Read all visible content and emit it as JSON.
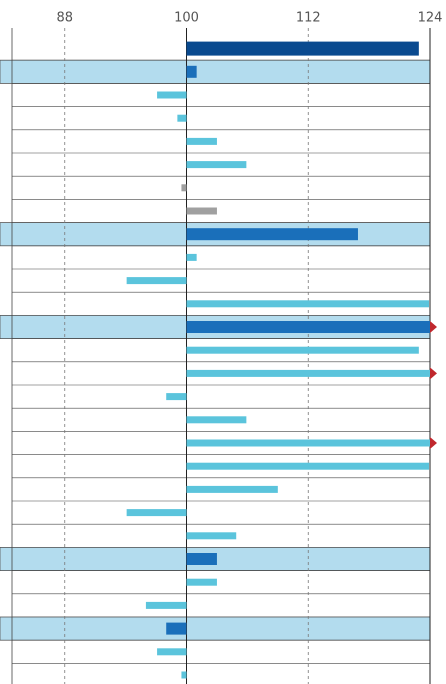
{
  "chart_data": {
    "type": "hbar",
    "categories": [
      null,
      null,
      null,
      null,
      null,
      null,
      null,
      null,
      null,
      null,
      null,
      null,
      null,
      null,
      null,
      null,
      null,
      null,
      null,
      null,
      null,
      null,
      null,
      null,
      null,
      null,
      null,
      null
    ],
    "values": [
      122.9,
      101.0,
      97.1,
      99.1,
      103.0,
      105.9,
      99.5,
      103.0,
      116.9,
      101.0,
      94.1,
      123.9,
      125,
      122.9,
      125,
      98.0,
      105.9,
      125,
      123.9,
      109.0,
      94.1,
      104.9,
      103.0,
      103.0,
      96.0,
      98.0,
      97.1,
      99.5
    ],
    "colors": [
      "#0a4a8f",
      "#1a6fba",
      "#5bc4dc",
      "#5bc4dc",
      "#5bc4dc",
      "#5bc4dc",
      "#a0a0a0",
      "#a0a0a0",
      "#1a6fba",
      "#5bc4dc",
      "#5bc4dc",
      "#5bc4dc",
      "#1a6fba",
      "#5bc4dc",
      "#5bc4dc",
      "#5bc4dc",
      "#5bc4dc",
      "#5bc4dc",
      "#5bc4dc",
      "#5bc4dc",
      "#5bc4dc",
      "#5bc4dc",
      "#1a6fba",
      "#5bc4dc",
      "#5bc4dc",
      "#1a6fba",
      "#5bc4dc",
      "#5bc4dc"
    ],
    "highlight_rows": [
      1,
      8,
      12,
      22,
      25
    ],
    "highlight_color": "#b3dcee",
    "xlim": [
      82.8,
      124
    ],
    "xticks": [
      88,
      100,
      112,
      124
    ],
    "baseline": 100,
    "grid": true
  }
}
